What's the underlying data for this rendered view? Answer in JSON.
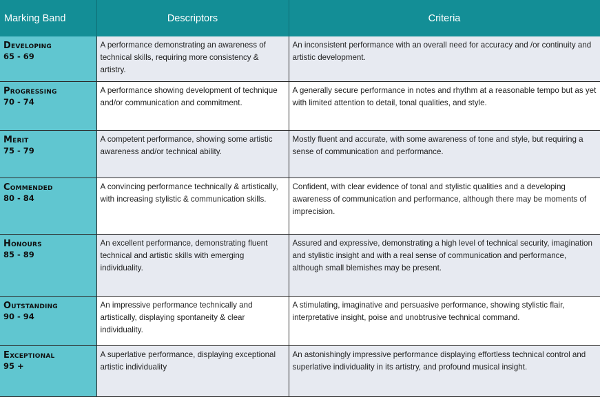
{
  "header": {
    "band": "Marking Band",
    "descriptors": "Descriptors",
    "criteria": "Criteria"
  },
  "rows": [
    {
      "band": "Developing",
      "range": "65 - 69",
      "descriptor": "A performance demonstrating an awareness of technical skills, requiring more consistency & artistry.",
      "criteria": "An inconsistent performance with an overall need for accuracy and /or continuity and artistic development."
    },
    {
      "band": "Progressing",
      "range": "70 - 74",
      "descriptor": "A performance showing development of technique and/or communication and commitment.",
      "criteria": "A generally secure performance in notes and rhythm at a reasonable tempo but as yet with limited attention to detail, tonal qualities, and style."
    },
    {
      "band": "Merit",
      "range": "75 - 79",
      "descriptor": "A competent performance, showing some artistic awareness and/or technical ability.",
      "criteria": "Mostly fluent and accurate, with some awareness of tone and style, but requiring a sense of communication and performance."
    },
    {
      "band": "Commended",
      "range": "80 - 84",
      "descriptor": "A convincing performance technically & artistically, with increasing stylistic & communication skills.",
      "criteria": "Confident, with clear evidence of tonal and stylistic qualities and a developing awareness of communication and performance, although there may be moments of imprecision."
    },
    {
      "band": "Honours",
      "range": "85 - 89",
      "descriptor": "An excellent performance, demonstrating fluent technical and artistic skills with emerging individuality.",
      "criteria": "Assured and expressive, demonstrating a high level of technical security, imagination and stylistic insight and with a real sense of communication and performance, although small blemishes may be present."
    },
    {
      "band": "Outstanding",
      "range": "90 - 94",
      "descriptor": "An impressive performance technically and artistically, displaying spontaneity & clear individuality.",
      "criteria": "A stimulating, imaginative and persuasive performance, showing stylistic flair, interpretative insight, poise and unobtrusive technical command."
    },
    {
      "band": "Exceptional",
      "range": "95 +",
      "descriptor": "A superlative performance, displaying exceptional artistic individuality",
      "criteria": "An astonishingly impressive performance displaying effortless technical control and superlative individuality in its artistry, and profound musical insight."
    }
  ]
}
